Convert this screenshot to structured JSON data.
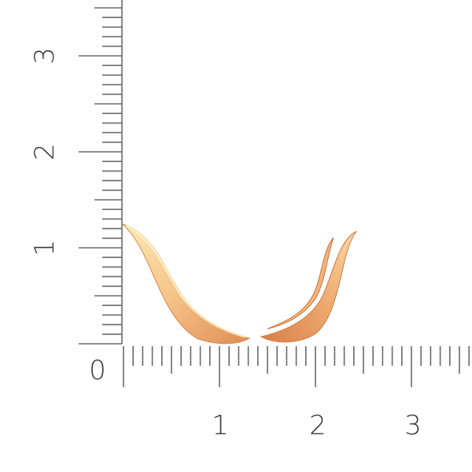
{
  "ruler": {
    "unit_labels_horizontal": [
      "0",
      "1",
      "2",
      "3"
    ],
    "unit_labels_vertical": [
      "1",
      "2",
      "3"
    ],
    "subdivisions_per_unit": 10,
    "tick_color": "#6a6a6a"
  },
  "product": {
    "description_icon": "gold-ear-climber-earrings",
    "metal_color": "#e9a56a",
    "highlight_color": "#fff1c4"
  }
}
